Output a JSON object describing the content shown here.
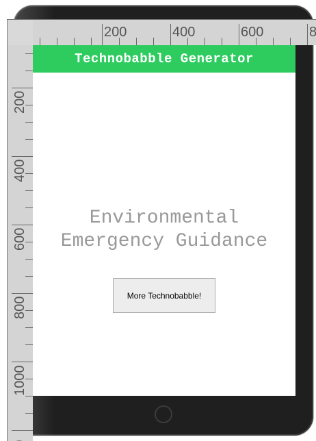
{
  "app": {
    "title": "Technobabble Generator",
    "phrase_line1": "Environmental",
    "phrase_line2": "Emergency Guidance",
    "button_label": "More Technobabble!"
  },
  "rulers": {
    "top_labels": [
      "200",
      "400",
      "600",
      "8"
    ],
    "left_labels": [
      "200",
      "400",
      "600",
      "800",
      "1000",
      "200"
    ]
  },
  "colors": {
    "header": "#2ecc5f",
    "phrase_text": "#999999",
    "device_frame": "#1f1f1f"
  }
}
